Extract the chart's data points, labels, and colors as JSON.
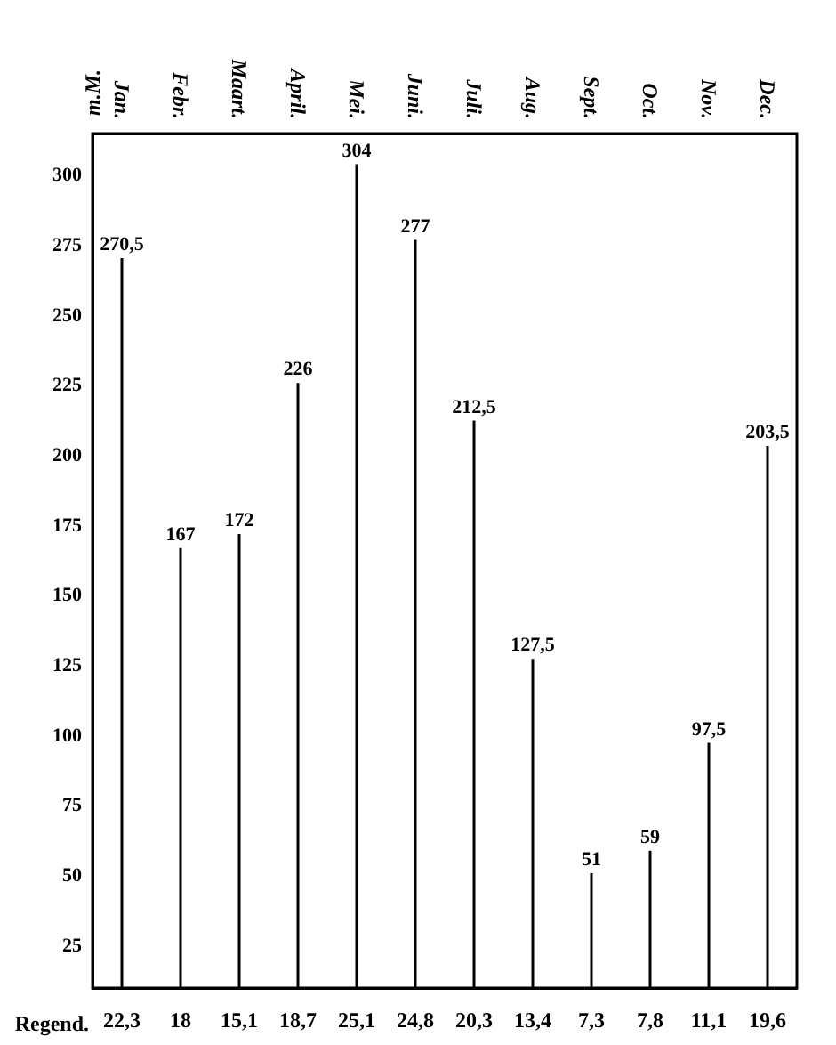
{
  "chart_data": {
    "type": "bar",
    "ylabel": "m.M.",
    "categories": [
      "Jan.",
      "Febr.",
      "Maart.",
      "April.",
      "Mei.",
      "Juni.",
      "Juli.",
      "Aug.",
      "Sept.",
      "Oct.",
      "Nov.",
      "Dec."
    ],
    "series": [
      {
        "color": "#000000",
        "values": [
          270.5,
          167,
          172,
          226,
          304,
          277,
          212.5,
          127.5,
          51,
          59,
          97.5,
          203.5
        ],
        "value_labels": [
          "270,5",
          "167",
          "172",
          "226",
          "304",
          "277",
          "212,5",
          "127,5",
          "51",
          "59",
          "97,5",
          "203,5"
        ]
      }
    ],
    "annotations": [
      "Regend.",
      "22,3",
      "18",
      "15,1",
      "18,7",
      "25,1",
      "24,8",
      "20,3",
      "13,4",
      "7,3",
      "7,8",
      "11,1",
      "19,6"
    ],
    "ylim": [
      10,
      315
    ],
    "yticks": [
      25,
      50,
      75,
      100,
      125,
      150,
      175,
      200,
      225,
      250,
      275,
      300
    ]
  }
}
